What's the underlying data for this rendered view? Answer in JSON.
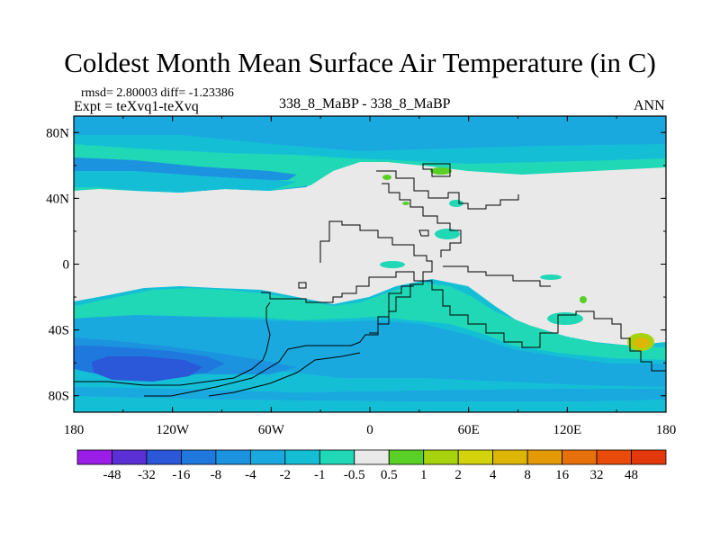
{
  "title": "Coldest Month Mean Surface Air Temperature (in C)",
  "subtitle": {
    "stats": "rmsd= 2.80003 diff= -1.23386",
    "experiment": "Expt = teXvq1-teXvq",
    "center": "338_8_MaBP - 338_8_MaBP",
    "season": "ANN"
  },
  "map": {
    "projection": "cylindrical-equidistant",
    "lon_range": [
      -180,
      180
    ],
    "lat_range": [
      -90,
      90
    ],
    "lon_ticks": [
      {
        "value": -180,
        "label": "180"
      },
      {
        "value": -120,
        "label": "120W"
      },
      {
        "value": -60,
        "label": "60W"
      },
      {
        "value": 0,
        "label": "0"
      },
      {
        "value": 60,
        "label": "60E"
      },
      {
        "value": 120,
        "label": "120E"
      },
      {
        "value": 180,
        "label": "180"
      }
    ],
    "lat_ticks": [
      {
        "value": 80,
        "label": "80N"
      },
      {
        "value": 40,
        "label": "40N"
      },
      {
        "value": 0,
        "label": "0"
      },
      {
        "value": -40,
        "label": "40S"
      },
      {
        "value": -80,
        "label": "80S"
      }
    ]
  },
  "colorbar": {
    "labels": [
      "-48",
      "-32",
      "-16",
      "-8",
      "-4",
      "-2",
      "-1",
      "-0.5",
      "0.5",
      "1",
      "2",
      "4",
      "8",
      "16",
      "32",
      "48"
    ],
    "colors": [
      "#9a1ee6",
      "#5a2fd6",
      "#2a58d8",
      "#1f78de",
      "#1c93df",
      "#1aa9df",
      "#14bfd6",
      "#20d7b6",
      "#e9e9e9",
      "#58d025",
      "#a6d30e",
      "#d2d30a",
      "#ddb606",
      "#e39a06",
      "#e8700a",
      "#e84b0a",
      "#e3380c"
    ]
  },
  "chart_data": {
    "type": "heatmap",
    "title": "Coldest Month Mean Surface Air Temperature (in C)",
    "variable": "Coldest Month Mean Surface Air Temperature difference",
    "units": "C",
    "contour_levels": [
      -48,
      -32,
      -16,
      -8,
      -4,
      -2,
      -1,
      -0.5,
      0.5,
      1,
      2,
      4,
      8,
      16,
      32,
      48
    ],
    "rmsd": 2.80003,
    "diff": -1.23386,
    "xlabel": "",
    "ylabel": "",
    "xlim": [
      -180,
      180
    ],
    "ylim": [
      -90,
      90
    ]
  }
}
